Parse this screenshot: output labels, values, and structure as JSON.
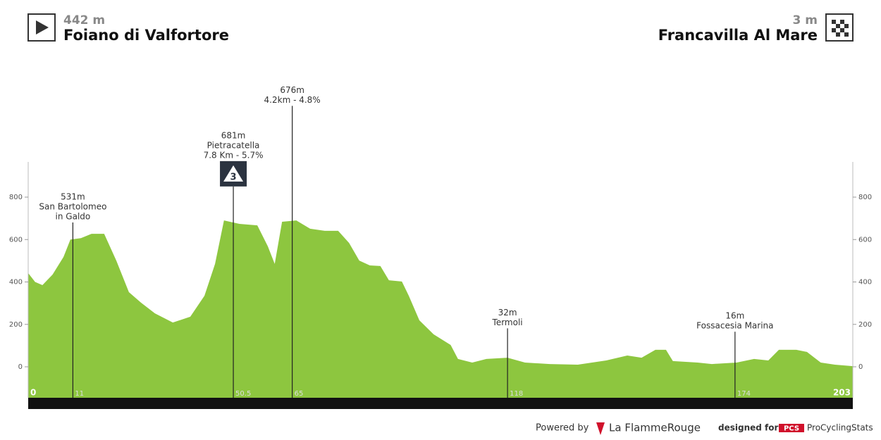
{
  "chart_data": {
    "type": "area",
    "start": {
      "altitude": "442 m",
      "name": "Foiano di Valfortore"
    },
    "finish": {
      "altitude": "3 m",
      "name": "Francavilla Al Mare"
    },
    "color": "#8dc63f",
    "x": [
      0,
      1.7,
      3.5,
      6,
      8.7,
      10.4,
      13,
      15.6,
      18.7,
      21.7,
      24.8,
      27.8,
      31.2,
      35.6,
      39.9,
      43.4,
      46,
      48.2,
      52,
      56.4,
      59,
      60.7,
      62.5,
      66,
      69.4,
      73,
      76.3,
      79,
      81.5,
      84.1,
      86.7,
      88.8,
      92,
      93.7,
      96.3,
      99.8,
      104,
      105.8,
      109.3,
      112.8,
      118,
      122.3,
      128.4,
      135.3,
      142.3,
      147.5,
      151,
      154.4,
      157,
      158.7,
      164.8,
      168.3,
      174.4,
      178.7,
      182.2,
      184.8,
      189.1,
      191.7,
      195.1,
      198.6,
      203
    ],
    "values": [
      442,
      400,
      385,
      435,
      518,
      600,
      607,
      627,
      627,
      500,
      352,
      302,
      252,
      209,
      236,
      335,
      485,
      690,
      674,
      667,
      568,
      485,
      684,
      690,
      651,
      641,
      641,
      584,
      501,
      478,
      475,
      408,
      402,
      335,
      219,
      153,
      103,
      37,
      20,
      37,
      43,
      20,
      13,
      10,
      30,
      53,
      43,
      80,
      80,
      27,
      20,
      13,
      20,
      37,
      30,
      80,
      80,
      70,
      20,
      10,
      3
    ],
    "xlim": [
      0,
      203
    ],
    "xticks": [
      0,
      203
    ],
    "ylim": [
      -146,
      966
    ],
    "yticks": [
      0,
      200,
      400,
      600,
      800
    ],
    "annotations": [
      {
        "km": 11,
        "elevation": 531,
        "lines": [
          "531m",
          "San Bartolomeo",
          "in Galdo"
        ]
      },
      {
        "km": 50.5,
        "elevation": 681,
        "lines": [
          "681m",
          "Pietracatella",
          "7.8 Km - 5.7%"
        ],
        "category": 3
      },
      {
        "km": 65,
        "elevation": 676,
        "lines": [
          "676m",
          "4.2km - 4.8%"
        ]
      },
      {
        "km": 118,
        "elevation": 32,
        "lines": [
          "32m",
          "Termoli"
        ]
      },
      {
        "km": 174,
        "elevation": 16,
        "lines": [
          "16m",
          "Fossacesia Marina"
        ]
      }
    ]
  },
  "footer": {
    "powered": "Powered by",
    "brand": "La FlammeRouge",
    "designed": "designed for",
    "pcs": "PCS",
    "site": "ProCyclingStats"
  }
}
